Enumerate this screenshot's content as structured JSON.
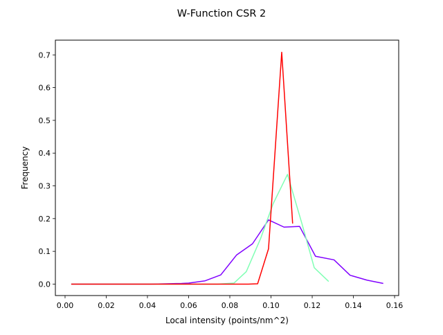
{
  "chart_data": {
    "type": "line",
    "title": "W-Function CSR 2",
    "xlabel": "Local intensity (points/nm^2)",
    "ylabel": "Frequency",
    "xlim": [
      -0.0047,
      0.162
    ],
    "ylim": [
      -0.035,
      0.745
    ],
    "xticks": [
      0.0,
      0.02,
      0.04,
      0.06,
      0.08,
      0.1,
      0.12,
      0.14,
      0.16
    ],
    "xtick_labels": [
      "0.00",
      "0.02",
      "0.04",
      "0.06",
      "0.08",
      "0.10",
      "0.12",
      "0.14",
      "0.16"
    ],
    "yticks": [
      0.0,
      0.1,
      0.2,
      0.3,
      0.4,
      0.5,
      0.6,
      0.7
    ],
    "ytick_labels": [
      "0.0",
      "0.1",
      "0.2",
      "0.3",
      "0.4",
      "0.5",
      "0.6",
      "0.7"
    ],
    "grid": false,
    "legend": false,
    "series": [
      {
        "color": "#8000ff",
        "x": [
          0.003,
          0.0107,
          0.0183,
          0.026,
          0.0336,
          0.0413,
          0.0489,
          0.0566,
          0.06,
          0.068,
          0.0756,
          0.0833,
          0.091,
          0.0988,
          0.1063,
          0.1139,
          0.1216,
          0.1306,
          0.1384,
          0.1466,
          0.1545
        ],
        "y": [
          0.0,
          0.0,
          0.0,
          0.0,
          0.0,
          0.0,
          0.001,
          0.002,
          0.003,
          0.01,
          0.028,
          0.089,
          0.123,
          0.196,
          0.174,
          0.176,
          0.085,
          0.074,
          0.027,
          0.012,
          0.002
        ]
      },
      {
        "color": "#80ffb4",
        "x": [
          0.003,
          0.02,
          0.04,
          0.06,
          0.074,
          0.082,
          0.088,
          0.095,
          0.101,
          0.108,
          0.115,
          0.121,
          0.128
        ],
        "y": [
          0.0,
          0.0,
          0.0,
          0.0,
          0.0,
          0.003,
          0.038,
          0.14,
          0.245,
          0.335,
          0.185,
          0.05,
          0.008
        ]
      },
      {
        "color": "#ff0000",
        "x": [
          0.003,
          0.02,
          0.04,
          0.06,
          0.08,
          0.089,
          0.0935,
          0.0988,
          0.1052,
          0.1105
        ],
        "y": [
          0.0,
          0.0,
          0.0,
          0.0,
          0.0,
          0.0,
          0.001,
          0.108,
          0.708,
          0.185
        ]
      }
    ]
  }
}
